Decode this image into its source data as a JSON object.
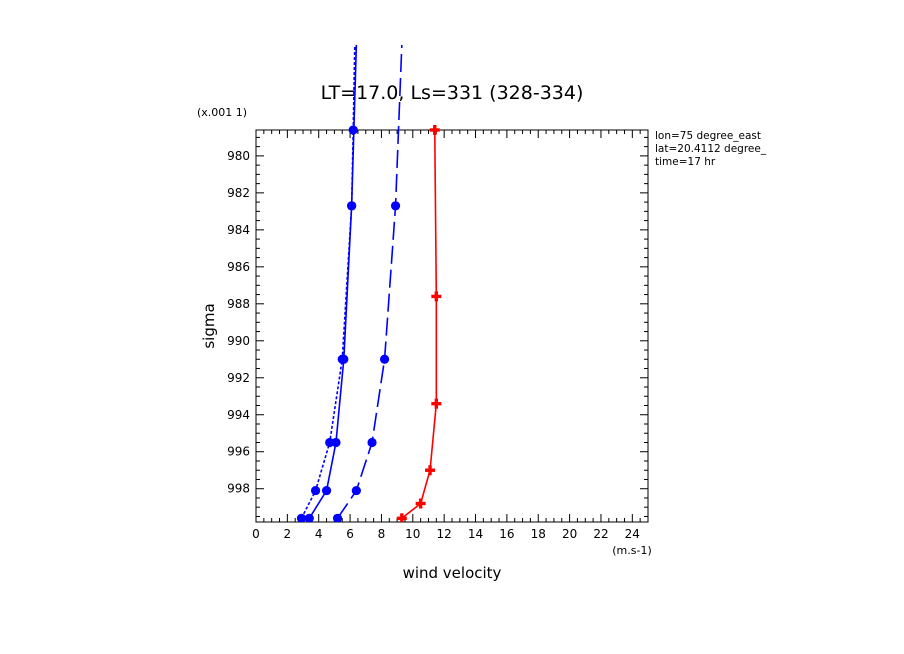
{
  "chart_data": {
    "type": "line",
    "title": "LT=17.0, Ls=331 (328-334)",
    "xlabel": "wind velocity",
    "ylabel": "sigma",
    "x_unit": "(m.s-1)",
    "y_unit": "(x.001 1)",
    "xlim": [
      0,
      25
    ],
    "ylim": [
      999.8,
      978.6
    ],
    "x_ticks": [
      "0",
      "2",
      "4",
      "6",
      "8",
      "10",
      "12",
      "14",
      "16",
      "18",
      "20",
      "22",
      "24"
    ],
    "y_ticks": [
      "980",
      "982",
      "984",
      "986",
      "988",
      "990",
      "992",
      "994",
      "996",
      "998"
    ],
    "annotations": [
      "lon=75 degree_east",
      "lat=20.4112 degree_",
      "time=17 hr"
    ],
    "series": [
      {
        "color": "#0000ff",
        "dash": "solid",
        "marker": "circle",
        "x": [
          3.4,
          4.5,
          5.1,
          5.6,
          6.1,
          6.4
        ],
        "y": [
          999.6,
          998.1,
          995.5,
          991.0,
          982.7,
          974.0
        ]
      },
      {
        "color": "#0000ff",
        "dash": "dotted",
        "marker": "circle",
        "x": [
          2.9,
          3.8,
          4.7,
          5.5,
          6.1,
          6.2,
          6.3
        ],
        "y": [
          999.6,
          998.1,
          995.5,
          991.0,
          982.7,
          978.6,
          974.0
        ]
      },
      {
        "color": "#0000ff",
        "dash": "longdash",
        "marker": "circle",
        "x": [
          5.2,
          6.4,
          7.4,
          8.2,
          8.9,
          9.3
        ],
        "y": [
          999.6,
          998.1,
          995.5,
          991.0,
          982.7,
          974.0
        ]
      },
      {
        "color": "#ff0000",
        "dash": "solid",
        "marker": "cross",
        "x": [
          9.3,
          10.5,
          11.1,
          11.5,
          11.5,
          11.4
        ],
        "y": [
          999.6,
          998.8,
          997.0,
          993.4,
          987.6,
          978.6
        ]
      }
    ]
  }
}
